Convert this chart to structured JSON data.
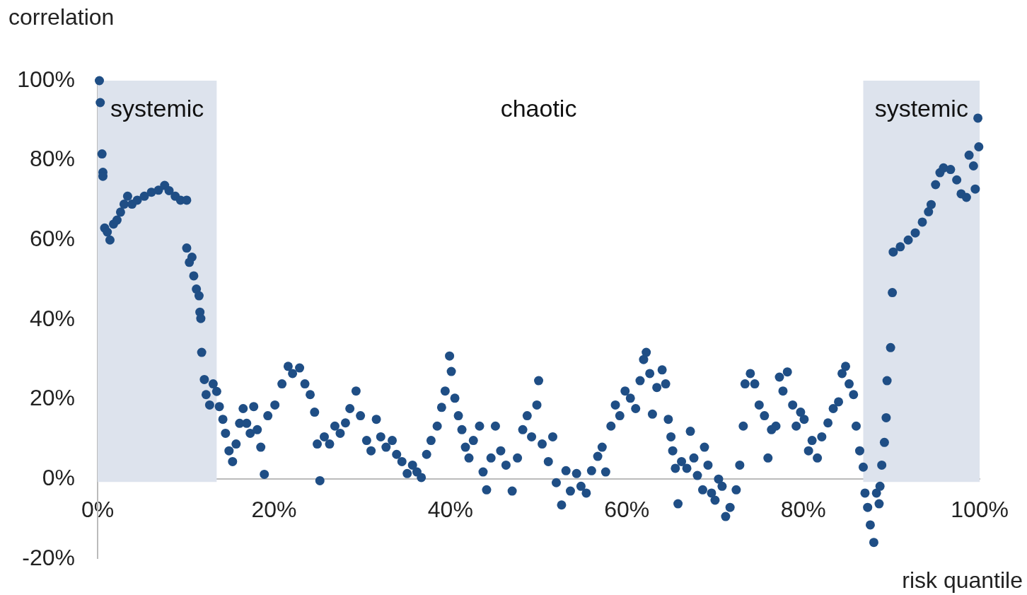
{
  "chart_data": {
    "type": "scatter",
    "xlabel": "risk quantile",
    "ylabel": "correlation",
    "marker": "circle",
    "legend": false,
    "grid": false,
    "xlim": [
      0,
      100
    ],
    "xticks": [
      {
        "value": 0,
        "label": "0%"
      },
      {
        "value": 20,
        "label": "20%"
      },
      {
        "value": 40,
        "label": "40%"
      },
      {
        "value": 60,
        "label": "60%"
      },
      {
        "value": 80,
        "label": "80%"
      },
      {
        "value": 100,
        "label": "100%"
      }
    ],
    "ylim": [
      -20,
      100
    ],
    "yticks": [
      {
        "value": -20,
        "label": "-20%"
      },
      {
        "value": 0,
        "label": "0%"
      },
      {
        "value": 20,
        "label": "20%"
      },
      {
        "value": 40,
        "label": "40%"
      },
      {
        "value": 60,
        "label": "60%"
      },
      {
        "value": 80,
        "label": "80%"
      },
      {
        "value": 100,
        "label": "100%"
      }
    ],
    "bands": [
      {
        "axis": "x",
        "from": 0,
        "to": 13.5,
        "label": "systemic",
        "color": "#dde3ed"
      },
      {
        "axis": "x",
        "from": 86.8,
        "to": 100,
        "label": "systemic",
        "color": "#dde3ed"
      }
    ],
    "annotations": [
      "chaotic"
    ],
    "series": [
      {
        "color": "#1f4e85",
        "x": [
          0.2,
          0.3,
          0.5,
          0.6,
          0.6,
          0.8,
          1.1,
          1.4,
          1.8,
          2.2,
          2.6,
          3.0,
          3.4,
          3.9,
          4.5,
          5.3,
          6.1,
          6.9,
          7.6,
          8.1,
          8.8,
          9.4,
          10.1,
          10.1,
          10.4,
          10.7,
          10.9,
          11.2,
          11.5,
          11.6,
          11.7,
          11.8,
          12.1,
          12.3,
          12.7,
          13.1,
          13.5,
          13.8,
          14.2,
          14.5,
          14.9,
          15.3,
          15.7,
          16.1,
          16.5,
          16.9,
          17.3,
          17.7,
          18.1,
          18.5,
          18.9,
          19.3,
          20.1,
          20.9,
          21.6,
          22.1,
          22.9,
          23.5,
          24.1,
          24.6,
          24.9,
          25.2,
          25.7,
          26.3,
          26.9,
          27.5,
          28.1,
          28.6,
          29.3,
          29.8,
          30.5,
          31.0,
          31.6,
          32.1,
          32.7,
          33.4,
          33.9,
          34.5,
          35.1,
          35.7,
          36.2,
          36.7,
          37.3,
          37.8,
          38.5,
          39.0,
          39.4,
          39.9,
          40.1,
          40.5,
          40.9,
          41.3,
          41.7,
          42.1,
          42.6,
          43.3,
          43.7,
          44.1,
          44.6,
          45.1,
          45.7,
          46.3,
          47.0,
          47.6,
          48.2,
          48.7,
          49.2,
          49.8,
          50.0,
          50.4,
          51.1,
          51.6,
          52.0,
          52.6,
          53.1,
          53.6,
          54.3,
          54.8,
          55.4,
          56.0,
          56.7,
          57.2,
          57.6,
          58.2,
          58.7,
          59.2,
          59.8,
          60.4,
          61.0,
          61.5,
          61.9,
          62.2,
          62.6,
          62.9,
          63.4,
          64.0,
          64.4,
          64.7,
          65.0,
          65.2,
          65.5,
          65.8,
          66.2,
          66.8,
          67.2,
          67.6,
          68.0,
          68.6,
          68.8,
          69.2,
          69.6,
          70.0,
          70.4,
          70.8,
          71.2,
          71.7,
          72.4,
          72.8,
          73.2,
          73.4,
          74.0,
          74.5,
          75.0,
          75.6,
          76.0,
          76.4,
          76.9,
          77.3,
          77.7,
          78.2,
          78.8,
          79.2,
          79.7,
          80.1,
          80.6,
          81.0,
          81.6,
          82.1,
          82.8,
          83.4,
          84.0,
          84.4,
          84.8,
          85.2,
          85.7,
          86.0,
          86.4,
          86.8,
          87.0,
          87.3,
          87.6,
          88.0,
          88.3,
          88.6,
          88.7,
          88.9,
          89.2,
          89.4,
          89.5,
          89.9,
          90.1,
          90.2,
          91.0,
          91.9,
          92.7,
          93.5,
          94.2,
          94.5,
          95.0,
          95.5,
          95.9,
          96.7,
          97.4,
          97.9,
          98.5,
          98.8,
          99.3,
          99.5,
          99.8,
          99.9
        ],
        "values": [
          100,
          94.5,
          81.6,
          77,
          76,
          63,
          62,
          60,
          64,
          65,
          67,
          69,
          71,
          69,
          70,
          71,
          72,
          72.5,
          73.7,
          72.4,
          71,
          70,
          70,
          58,
          54.4,
          55.7,
          51,
          47.7,
          46,
          41.9,
          40.3,
          31.8,
          25,
          21.2,
          18.6,
          23.9,
          22,
          18.2,
          15,
          11.5,
          7.1,
          4.4,
          8.8,
          14,
          17.7,
          14,
          11.5,
          18.2,
          12.4,
          8,
          1.2,
          15.9,
          18.6,
          23.9,
          28.3,
          26.5,
          27.9,
          23.9,
          21.2,
          16.8,
          8.8,
          -0.4,
          10.6,
          8.8,
          13.3,
          11.5,
          14.1,
          17.7,
          22.1,
          15.9,
          9.7,
          7.1,
          15,
          10.6,
          8,
          9.7,
          6.2,
          4.4,
          1.4,
          3.5,
          1.8,
          0.4,
          6.2,
          9.7,
          13.3,
          18,
          22.1,
          30.9,
          27,
          20.3,
          15.9,
          12.4,
          8,
          5.3,
          9.7,
          13.3,
          1.8,
          -2.7,
          5.3,
          13.3,
          7.1,
          3.5,
          -3,
          5.3,
          12.4,
          15.9,
          10.6,
          18.6,
          24.7,
          8.8,
          4.4,
          10.6,
          -0.9,
          -6.5,
          2.1,
          -3,
          1.4,
          -1.8,
          -3.5,
          2.1,
          5.7,
          8,
          1.8,
          13.3,
          18.6,
          15.9,
          22.1,
          20.3,
          17.7,
          24.7,
          30,
          31.8,
          26.5,
          16.3,
          23,
          27.4,
          23.9,
          15,
          10.6,
          7.1,
          2.7,
          -6.2,
          4.4,
          2.7,
          12,
          5.3,
          0.9,
          -2.7,
          8,
          3.5,
          -3.5,
          -5.3,
          0,
          -1.8,
          -9.4,
          -7.1,
          -2.7,
          3.5,
          13.3,
          23.9,
          26.5,
          23.9,
          18.6,
          15.9,
          5.3,
          12.4,
          13.3,
          25.6,
          22.1,
          26.9,
          18.6,
          13.3,
          16.8,
          15,
          7.1,
          9.7,
          5.3,
          10.6,
          14.1,
          17.7,
          19.4,
          26.5,
          28.3,
          23.9,
          21.2,
          13.3,
          7.1,
          3,
          -3.5,
          -7.1,
          -11.5,
          -15.9,
          -3.5,
          -6.2,
          -1.8,
          3.5,
          9.2,
          15.4,
          24.7,
          33,
          46.8,
          57,
          58.3,
          60,
          61.8,
          64.5,
          67.1,
          68.9,
          73.9,
          76.9,
          78.1,
          77.7,
          75.1,
          71.6,
          70.7,
          81.3,
          78.6,
          72.8,
          90.6,
          83.4
        ]
      }
    ]
  }
}
